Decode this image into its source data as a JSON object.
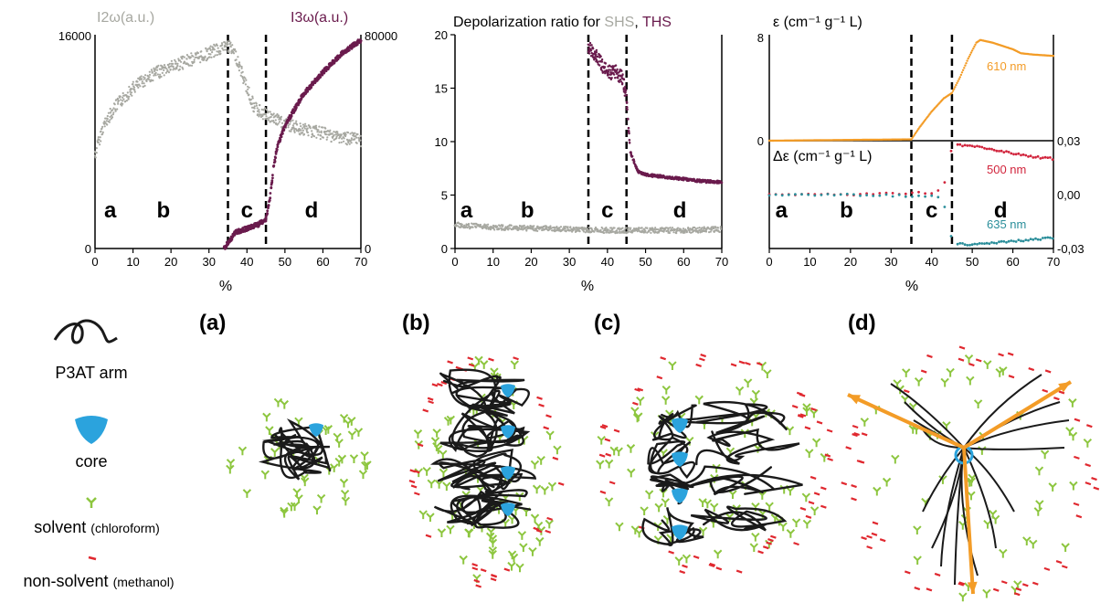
{
  "chart_data": [
    {
      "type": "scatter",
      "xlabel": "%",
      "xlim": [
        0,
        70
      ],
      "xticks": [
        "0",
        "10",
        "20",
        "30",
        "40",
        "50",
        "60",
        "70"
      ],
      "ylabel_left": "I2ω(a.u.)",
      "ylabel_right": "I3ω(a.u.)",
      "ylim_left": [
        0,
        16000
      ],
      "ylim_right": [
        0,
        80000
      ],
      "yticks_left": [
        "0",
        "16000"
      ],
      "yticks_right": [
        "0",
        "80000"
      ],
      "dividers": [
        35,
        45
      ],
      "regions": [
        "a",
        "b",
        "c",
        "d"
      ],
      "series": [
        {
          "name": "I2ω",
          "color": "#a7a8a1",
          "x": [
            0,
            2,
            5,
            10,
            15,
            20,
            25,
            30,
            33,
            35,
            37,
            40,
            42,
            45,
            50,
            55,
            60,
            65,
            70
          ],
          "y": [
            7000,
            9000,
            10500,
            12000,
            13000,
            13600,
            14100,
            14600,
            15000,
            15200,
            14500,
            12000,
            10500,
            10000,
            9300,
            8900,
            8600,
            8300,
            8100
          ]
        },
        {
          "name": "I3ω",
          "color": "#6a1b4d",
          "x": [
            34,
            35,
            37,
            40,
            43,
            45,
            46,
            47,
            48,
            50,
            55,
            60,
            65,
            70
          ],
          "y": [
            0,
            2000,
            6000,
            7500,
            9000,
            11000,
            18000,
            30000,
            38000,
            46000,
            58000,
            66000,
            73000,
            78000
          ]
        }
      ]
    },
    {
      "type": "scatter",
      "title_prefix": "Depolarization ratio for ",
      "title_shs": "SHS",
      "title_sep": ", ",
      "title_ths": "THS",
      "xlabel": "%",
      "xlim": [
        0,
        70
      ],
      "ylim": [
        0,
        20
      ],
      "xticks": [
        "0",
        "10",
        "20",
        "30",
        "40",
        "50",
        "60",
        "70"
      ],
      "yticks": [
        "0",
        "5",
        "10",
        "15",
        "20"
      ],
      "dividers": [
        35,
        45
      ],
      "regions": [
        "a",
        "b",
        "c",
        "d"
      ],
      "series": [
        {
          "name": "SHS",
          "color": "#a7a8a1",
          "x": [
            0,
            10,
            20,
            30,
            40,
            50,
            60,
            70
          ],
          "y": [
            2.2,
            2.0,
            1.9,
            1.8,
            1.7,
            1.7,
            1.7,
            1.8
          ]
        },
        {
          "name": "THS",
          "color": "#6a1b4d",
          "x": [
            35,
            36,
            38,
            40,
            42,
            44,
            45,
            46,
            48,
            50,
            55,
            60,
            65,
            70
          ],
          "y": [
            19,
            18.5,
            17.5,
            16.5,
            16.5,
            16,
            14,
            9,
            7.2,
            6.9,
            6.7,
            6.5,
            6.3,
            6.2
          ]
        }
      ]
    },
    {
      "type": "line",
      "xlabel": "%",
      "xlim": [
        0,
        70
      ],
      "xticks": [
        "0",
        "10",
        "20",
        "30",
        "40",
        "50",
        "60",
        "70"
      ],
      "upper": {
        "ylabel": "ε (cm⁻¹ g⁻¹ L)",
        "ylim": [
          0,
          8
        ],
        "yticks": [
          "0",
          "8"
        ],
        "series": [
          {
            "name": "610 nm",
            "color": "#f39c27",
            "x": [
              0,
              35,
              37,
              40,
              43,
              45,
              47,
              49,
              51,
              52,
              55,
              58,
              60,
              62,
              65,
              70
            ],
            "y": [
              0,
              0.1,
              1.0,
              2.2,
              3.2,
              3.6,
              4.8,
              6.2,
              7.4,
              7.6,
              7.4,
              7.1,
              6.9,
              6.6,
              6.5,
              6.4
            ]
          }
        ]
      },
      "lower": {
        "ylabel": "Δε (cm⁻¹ g⁻¹ L)",
        "ylim": [
          -0.03,
          0.03
        ],
        "yticks": [
          "0,03",
          "0,00",
          "-0,03"
        ],
        "series": [
          {
            "name": "500 nm",
            "color": "#d1243c",
            "x": [
              0,
              10,
              20,
              30,
              40,
              42,
              44,
              45,
              50,
              55,
              60,
              65,
              70
            ],
            "y": [
              0,
              0,
              0,
              0.0005,
              0.001,
              0.002,
              0.01,
              0.028,
              0.027,
              0.025,
              0.023,
              0.021,
              0.02
            ]
          },
          {
            "name": "635 nm",
            "color": "#2a8e9a",
            "x": [
              0,
              10,
              20,
              30,
              40,
              42,
              44,
              45,
              50,
              55,
              60,
              65,
              70
            ],
            "y": [
              0,
              0,
              0,
              -0.0005,
              -0.001,
              -0.002,
              -0.01,
              -0.027,
              -0.028,
              -0.027,
              -0.026,
              -0.025,
              -0.024
            ]
          }
        ]
      },
      "dividers": [
        35,
        45
      ],
      "regions": [
        "a",
        "b",
        "c",
        "d"
      ]
    }
  ],
  "legend": {
    "arm": "P3AT arm",
    "core": "core",
    "solvent": "solvent",
    "solvent_paren": "(chloroform)",
    "nonsolvent": "non-solvent",
    "nonsolvent_paren": "(methanol)"
  },
  "panels": [
    "(a)",
    "(b)",
    "(c)",
    "(d)"
  ],
  "colors": {
    "chain": "#1a1a1a",
    "core": "#2ba3dd",
    "solvent": "#8dc63f",
    "nonsolvent": "#e0282f",
    "arrow": "#f39c27"
  }
}
